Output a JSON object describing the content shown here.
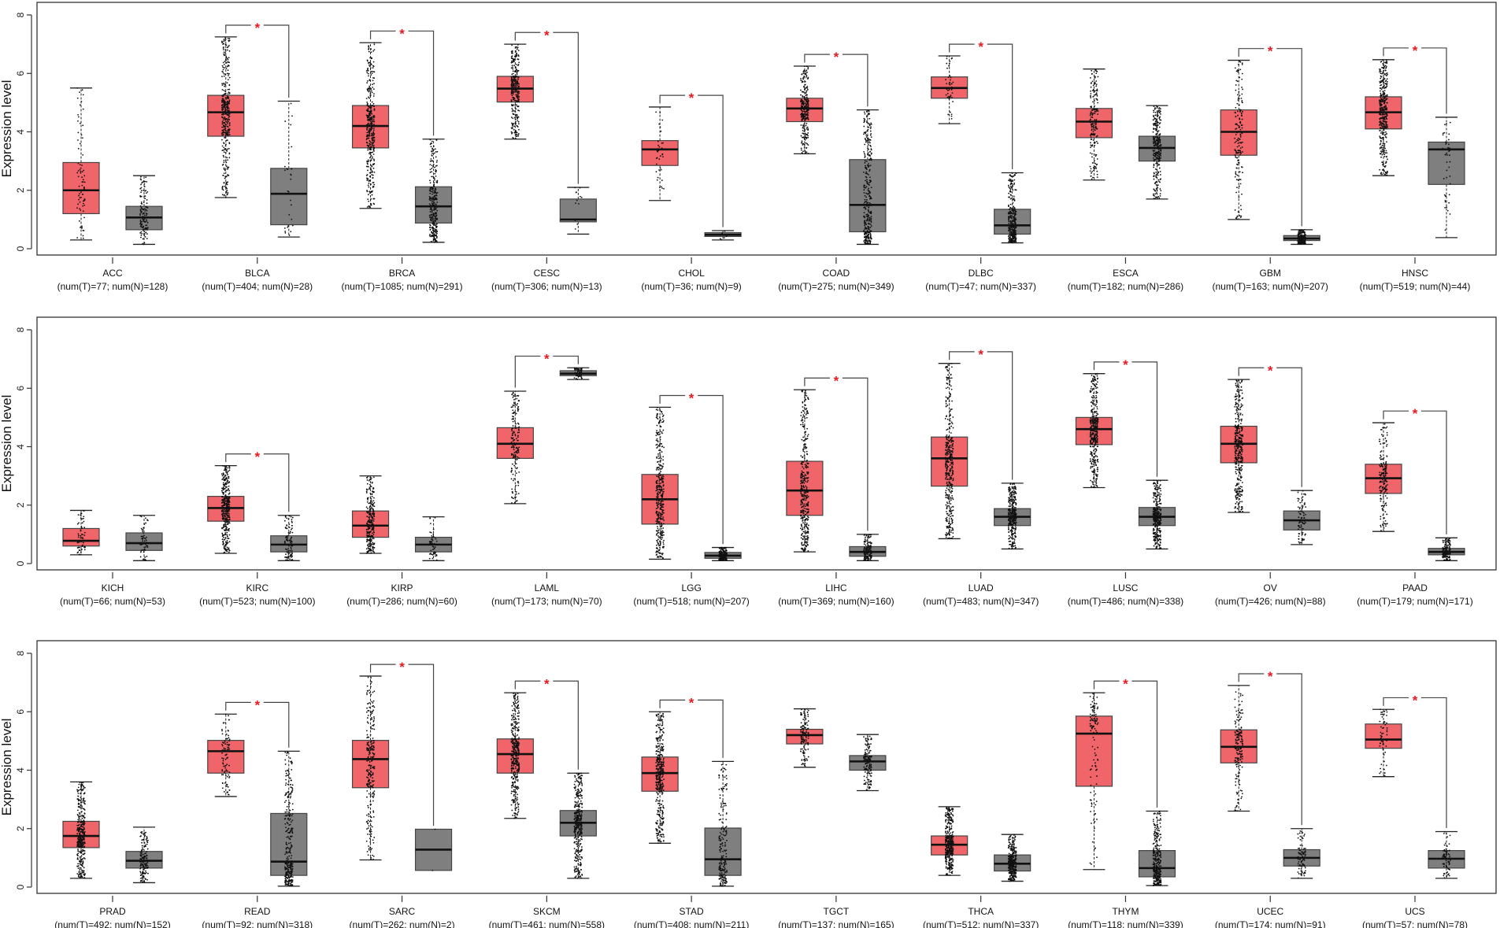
{
  "colors": {
    "tumor": "#f06569",
    "normal": "#7f7f7f",
    "significance": "#e8191e"
  },
  "chart_data": [
    {
      "type": "box",
      "ylabel": "Expression level",
      "ylim": [
        0,
        8
      ],
      "yticks": [
        "0",
        "2",
        "4",
        "6",
        "8"
      ],
      "significance_marker": "*",
      "categories": [
        {
          "name": "ACC",
          "label": "(num(T)=77; num(N)=128)",
          "significant": false,
          "tumor": {
            "min": 0.3,
            "q1": 1.2,
            "median": 2.0,
            "q3": 2.95,
            "max": 5.5,
            "n": 77
          },
          "normal": {
            "min": 0.15,
            "q1": 0.65,
            "median": 1.07,
            "q3": 1.45,
            "max": 2.5,
            "n": 128
          }
        },
        {
          "name": "BLCA",
          "label": "(num(T)=404; num(N)=28)",
          "significant": true,
          "tumor": {
            "min": 1.75,
            "q1": 3.85,
            "median": 4.67,
            "q3": 5.25,
            "max": 7.25,
            "n": 404
          },
          "normal": {
            "min": 0.4,
            "q1": 0.82,
            "median": 1.88,
            "q3": 2.75,
            "max": 5.05,
            "n": 28
          }
        },
        {
          "name": "BRCA",
          "label": "(num(T)=1085; num(N)=291)",
          "significant": true,
          "tumor": {
            "min": 1.38,
            "q1": 3.45,
            "median": 4.2,
            "q3": 4.9,
            "max": 7.05,
            "n": 1085
          },
          "normal": {
            "min": 0.22,
            "q1": 0.88,
            "median": 1.45,
            "q3": 2.12,
            "max": 3.75,
            "n": 291
          }
        },
        {
          "name": "CESC",
          "label": "(num(T)=306; num(N)=13)",
          "significant": true,
          "tumor": {
            "min": 3.75,
            "q1": 5.02,
            "median": 5.48,
            "q3": 5.9,
            "max": 7.0,
            "n": 306
          },
          "normal": {
            "min": 0.5,
            "q1": 0.92,
            "median": 1.0,
            "q3": 1.7,
            "max": 2.1,
            "n": 13
          }
        },
        {
          "name": "CHOL",
          "label": "(num(T)=36; num(N)=9)",
          "significant": true,
          "tumor": {
            "min": 1.65,
            "q1": 2.85,
            "median": 3.4,
            "q3": 3.7,
            "max": 4.85,
            "n": 36
          },
          "normal": {
            "min": 0.3,
            "q1": 0.42,
            "median": 0.48,
            "q3": 0.55,
            "max": 0.62,
            "n": 9
          }
        },
        {
          "name": "COAD",
          "label": "(num(T)=275; num(N)=349)",
          "significant": true,
          "tumor": {
            "min": 3.25,
            "q1": 4.35,
            "median": 4.8,
            "q3": 5.15,
            "max": 6.25,
            "n": 275
          },
          "normal": {
            "min": 0.15,
            "q1": 0.58,
            "median": 1.5,
            "q3": 3.05,
            "max": 4.75,
            "n": 349
          }
        },
        {
          "name": "DLBC",
          "label": "(num(T)=47; num(N)=337)",
          "significant": true,
          "tumor": {
            "min": 4.28,
            "q1": 5.15,
            "median": 5.5,
            "q3": 5.88,
            "max": 6.6,
            "n": 47
          },
          "normal": {
            "min": 0.2,
            "q1": 0.5,
            "median": 0.8,
            "q3": 1.35,
            "max": 2.6,
            "n": 337
          }
        },
        {
          "name": "ESCA",
          "label": "(num(T)=182; num(N)=286)",
          "significant": false,
          "tumor": {
            "min": 2.35,
            "q1": 3.8,
            "median": 4.35,
            "q3": 4.8,
            "max": 6.15,
            "n": 182
          },
          "normal": {
            "min": 1.7,
            "q1": 3.0,
            "median": 3.45,
            "q3": 3.85,
            "max": 4.9,
            "n": 286
          }
        },
        {
          "name": "GBM",
          "label": "(num(T)=163; num(N)=207)",
          "significant": true,
          "tumor": {
            "min": 1.0,
            "q1": 3.2,
            "median": 4.0,
            "q3": 4.75,
            "max": 6.45,
            "n": 163
          },
          "normal": {
            "min": 0.15,
            "q1": 0.28,
            "median": 0.35,
            "q3": 0.45,
            "max": 0.65,
            "n": 207
          }
        },
        {
          "name": "HNSC",
          "label": "(num(T)=519; num(N)=44)",
          "significant": true,
          "tumor": {
            "min": 2.5,
            "q1": 4.1,
            "median": 4.67,
            "q3": 5.2,
            "max": 6.47,
            "n": 519
          },
          "normal": {
            "min": 0.38,
            "q1": 2.2,
            "median": 3.4,
            "q3": 3.65,
            "max": 4.5,
            "n": 44
          }
        }
      ]
    },
    {
      "type": "box",
      "ylabel": "Expression level",
      "ylim": [
        0,
        8
      ],
      "yticks": [
        "0",
        "2",
        "4",
        "6",
        "8"
      ],
      "significance_marker": "*",
      "categories": [
        {
          "name": "KICH",
          "label": "(num(T)=66; num(N)=53)",
          "significant": false,
          "tumor": {
            "min": 0.3,
            "q1": 0.6,
            "median": 0.78,
            "q3": 1.2,
            "max": 1.82,
            "n": 66
          },
          "normal": {
            "min": 0.1,
            "q1": 0.45,
            "median": 0.7,
            "q3": 1.05,
            "max": 1.65,
            "n": 53
          }
        },
        {
          "name": "KIRC",
          "label": "(num(T)=523; num(N)=100)",
          "significant": true,
          "tumor": {
            "min": 0.35,
            "q1": 1.45,
            "median": 1.9,
            "q3": 2.3,
            "max": 3.35,
            "n": 523
          },
          "normal": {
            "min": 0.1,
            "q1": 0.4,
            "median": 0.65,
            "q3": 0.95,
            "max": 1.65,
            "n": 100
          }
        },
        {
          "name": "KIRP",
          "label": "(num(T)=286; num(N)=60)",
          "significant": false,
          "tumor": {
            "min": 0.35,
            "q1": 0.9,
            "median": 1.3,
            "q3": 1.8,
            "max": 3.0,
            "n": 286
          },
          "normal": {
            "min": 0.1,
            "q1": 0.4,
            "median": 0.65,
            "q3": 0.9,
            "max": 1.6,
            "n": 60
          }
        },
        {
          "name": "LAML",
          "label": "(num(T)=173; num(N)=70)",
          "significant": true,
          "tumor": {
            "min": 2.05,
            "q1": 3.6,
            "median": 4.1,
            "q3": 4.65,
            "max": 5.9,
            "n": 173
          },
          "normal": {
            "min": 6.3,
            "q1": 6.43,
            "median": 6.5,
            "q3": 6.6,
            "max": 6.7,
            "n": 70
          }
        },
        {
          "name": "LGG",
          "label": "(num(T)=518; num(N)=207)",
          "significant": true,
          "tumor": {
            "min": 0.15,
            "q1": 1.35,
            "median": 2.2,
            "q3": 3.05,
            "max": 5.35,
            "n": 518
          },
          "normal": {
            "min": 0.1,
            "q1": 0.18,
            "median": 0.27,
            "q3": 0.38,
            "max": 0.55,
            "n": 207
          }
        },
        {
          "name": "LIHC",
          "label": "(num(T)=369; num(N)=160)",
          "significant": true,
          "tumor": {
            "min": 0.4,
            "q1": 1.65,
            "median": 2.5,
            "q3": 3.5,
            "max": 5.95,
            "n": 369
          },
          "normal": {
            "min": 0.1,
            "q1": 0.25,
            "median": 0.4,
            "q3": 0.58,
            "max": 1.0,
            "n": 160
          }
        },
        {
          "name": "LUAD",
          "label": "(num(T)=483; num(N)=347)",
          "significant": true,
          "tumor": {
            "min": 0.85,
            "q1": 2.65,
            "median": 3.6,
            "q3": 4.33,
            "max": 6.85,
            "n": 483
          },
          "normal": {
            "min": 0.5,
            "q1": 1.3,
            "median": 1.6,
            "q3": 1.88,
            "max": 2.75,
            "n": 347
          }
        },
        {
          "name": "LUSC",
          "label": "(num(T)=486; num(N)=338)",
          "significant": true,
          "tumor": {
            "min": 2.6,
            "q1": 4.07,
            "median": 4.6,
            "q3": 5.0,
            "max": 6.5,
            "n": 486
          },
          "normal": {
            "min": 0.5,
            "q1": 1.3,
            "median": 1.6,
            "q3": 1.92,
            "max": 2.85,
            "n": 338
          }
        },
        {
          "name": "OV",
          "label": "(num(T)=426; num(N)=88)",
          "significant": true,
          "tumor": {
            "min": 1.75,
            "q1": 3.45,
            "median": 4.1,
            "q3": 4.7,
            "max": 6.3,
            "n": 426
          },
          "normal": {
            "min": 0.65,
            "q1": 1.15,
            "median": 1.48,
            "q3": 1.8,
            "max": 2.5,
            "n": 88
          }
        },
        {
          "name": "PAAD",
          "label": "(num(T)=179; num(N)=171)",
          "significant": true,
          "tumor": {
            "min": 1.1,
            "q1": 2.4,
            "median": 2.92,
            "q3": 3.4,
            "max": 4.82,
            "n": 179
          },
          "normal": {
            "min": 0.1,
            "q1": 0.3,
            "median": 0.4,
            "q3": 0.52,
            "max": 0.88,
            "n": 171
          }
        }
      ]
    },
    {
      "type": "box",
      "ylabel": "Expression level",
      "ylim": [
        0,
        8
      ],
      "yticks": [
        "0",
        "2",
        "4",
        "6",
        "8"
      ],
      "significance_marker": "*",
      "categories": [
        {
          "name": "PRAD",
          "label": "(num(T)=492; num(N)=152)",
          "significant": false,
          "tumor": {
            "min": 0.3,
            "q1": 1.35,
            "median": 1.75,
            "q3": 2.25,
            "max": 3.6,
            "n": 492
          },
          "normal": {
            "min": 0.15,
            "q1": 0.65,
            "median": 0.9,
            "q3": 1.22,
            "max": 2.05,
            "n": 152
          }
        },
        {
          "name": "READ",
          "label": "(num(T)=92; num(N)=318)",
          "significant": true,
          "tumor": {
            "min": 3.1,
            "q1": 3.9,
            "median": 4.65,
            "q3": 5.02,
            "max": 5.92,
            "n": 92
          },
          "normal": {
            "min": 0.03,
            "q1": 0.4,
            "median": 0.87,
            "q3": 2.52,
            "max": 4.65,
            "n": 318
          }
        },
        {
          "name": "SARC",
          "label": "(num(T)=262; num(N)=2)",
          "significant": true,
          "tumor": {
            "min": 0.93,
            "q1": 3.4,
            "median": 4.38,
            "q3": 5.02,
            "max": 7.22,
            "n": 262
          },
          "normal": {
            "min": 0.57,
            "q1": 0.57,
            "median": 1.28,
            "q3": 1.98,
            "max": 1.98,
            "n": 2
          }
        },
        {
          "name": "SKCM",
          "label": "(num(T)=461; num(N)=558)",
          "significant": true,
          "tumor": {
            "min": 2.35,
            "q1": 3.9,
            "median": 4.55,
            "q3": 5.07,
            "max": 6.65,
            "n": 461
          },
          "normal": {
            "min": 0.3,
            "q1": 1.75,
            "median": 2.2,
            "q3": 2.62,
            "max": 3.9,
            "n": 558
          }
        },
        {
          "name": "STAD",
          "label": "(num(T)=408; num(N)=211)",
          "significant": true,
          "tumor": {
            "min": 1.5,
            "q1": 3.28,
            "median": 3.9,
            "q3": 4.45,
            "max": 6.0,
            "n": 408
          },
          "normal": {
            "min": 0.03,
            "q1": 0.4,
            "median": 0.95,
            "q3": 2.02,
            "max": 4.3,
            "n": 211
          }
        },
        {
          "name": "TGCT",
          "label": "(num(T)=137; num(N)=165)",
          "significant": false,
          "tumor": {
            "min": 4.1,
            "q1": 4.9,
            "median": 5.2,
            "q3": 5.4,
            "max": 6.1,
            "n": 137
          },
          "normal": {
            "min": 3.3,
            "q1": 4.0,
            "median": 4.3,
            "q3": 4.5,
            "max": 5.22,
            "n": 165
          }
        },
        {
          "name": "THCA",
          "label": "(num(T)=512; num(N)=337)",
          "significant": false,
          "tumor": {
            "min": 0.4,
            "q1": 1.1,
            "median": 1.45,
            "q3": 1.75,
            "max": 2.75,
            "n": 512
          },
          "normal": {
            "min": 0.2,
            "q1": 0.55,
            "median": 0.8,
            "q3": 1.1,
            "max": 1.8,
            "n": 337
          }
        },
        {
          "name": "THYM",
          "label": "(num(T)=118; num(N)=339)",
          "significant": true,
          "tumor": {
            "min": 0.6,
            "q1": 3.45,
            "median": 5.25,
            "q3": 5.85,
            "max": 6.65,
            "n": 118
          },
          "normal": {
            "min": 0.05,
            "q1": 0.35,
            "median": 0.65,
            "q3": 1.25,
            "max": 2.6,
            "n": 339
          }
        },
        {
          "name": "UCEC",
          "label": "(num(T)=174; num(N)=91)",
          "significant": true,
          "tumor": {
            "min": 2.6,
            "q1": 4.25,
            "median": 4.8,
            "q3": 5.38,
            "max": 6.9,
            "n": 174
          },
          "normal": {
            "min": 0.3,
            "q1": 0.72,
            "median": 1.0,
            "q3": 1.28,
            "max": 2.0,
            "n": 91
          }
        },
        {
          "name": "UCS",
          "label": "(num(T)=57; num(N)=78)",
          "significant": true,
          "tumor": {
            "min": 3.78,
            "q1": 4.75,
            "median": 5.05,
            "q3": 5.58,
            "max": 6.08,
            "n": 57
          },
          "normal": {
            "min": 0.3,
            "q1": 0.65,
            "median": 0.97,
            "q3": 1.25,
            "max": 1.9,
            "n": 78
          }
        }
      ]
    }
  ]
}
